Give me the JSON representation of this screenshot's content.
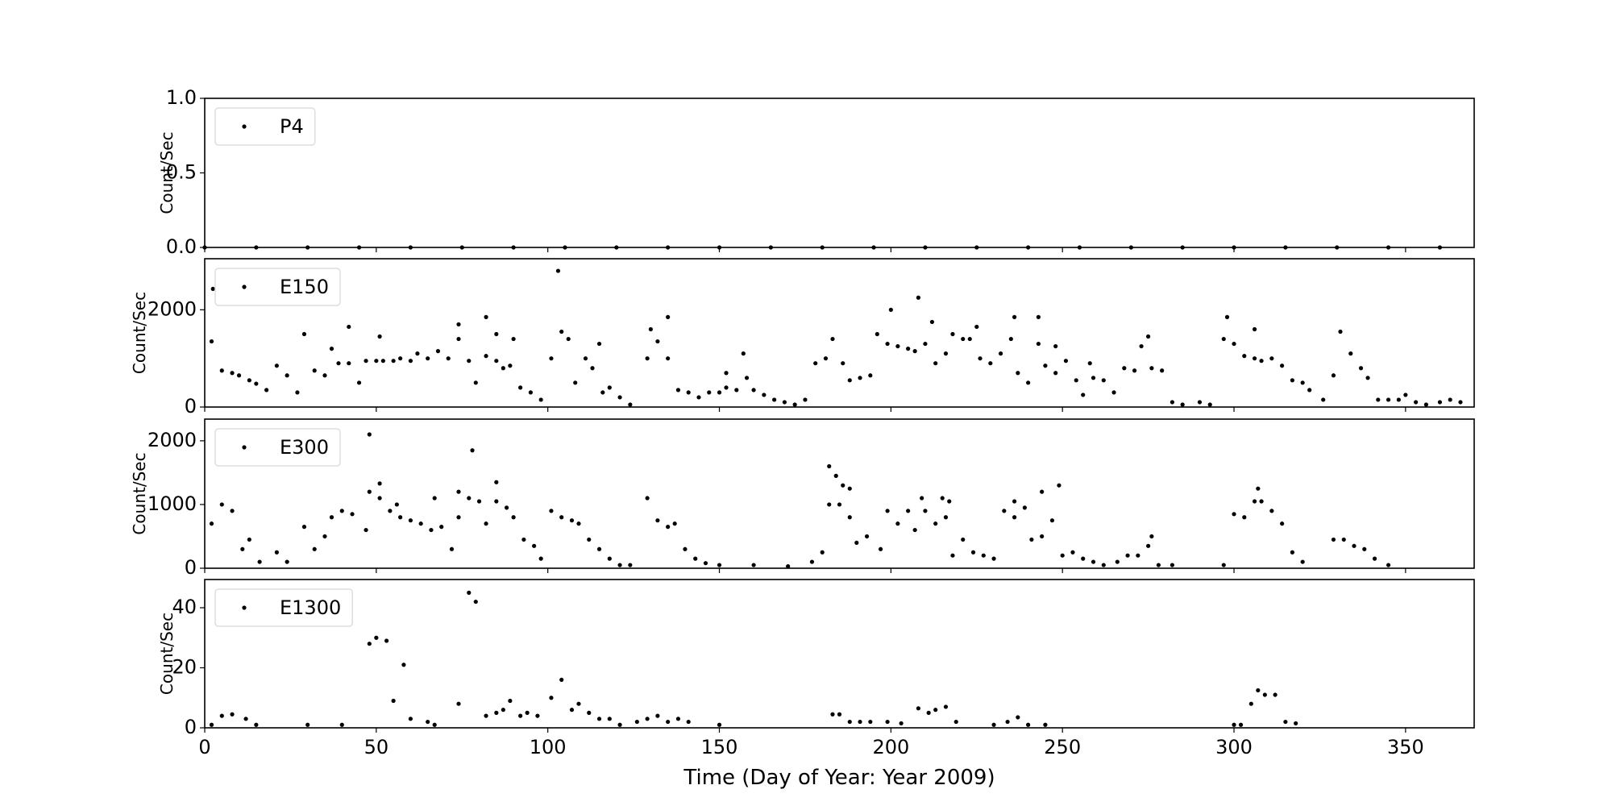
{
  "chart_data": [
    {
      "type": "scatter",
      "ylabel": "Count/Sec",
      "legend": "upper left",
      "xlim": [
        0,
        370
      ],
      "xticks": [
        0,
        50,
        100,
        150,
        200,
        250,
        300,
        350
      ],
      "ylim": [
        0,
        1
      ],
      "yticks": [
        {
          "value": 0,
          "label": "0.0"
        },
        {
          "value": 0.5,
          "label": "0.5"
        },
        {
          "value": 1,
          "label": "1.0"
        }
      ],
      "series": [
        {
          "name": "P4",
          "color": "#000000",
          "x": [
            0,
            15,
            30,
            45,
            60,
            75,
            90,
            105,
            120,
            135,
            150,
            165,
            180,
            195,
            210,
            225,
            240,
            255,
            270,
            285,
            300,
            315,
            330,
            345,
            360
          ],
          "values": [
            0,
            0,
            0,
            0,
            0,
            0,
            0,
            0,
            0,
            0,
            0,
            0,
            0,
            0,
            0,
            0,
            0,
            0,
            0,
            0,
            0,
            0,
            0,
            0,
            0
          ]
        }
      ]
    },
    {
      "type": "scatter",
      "ylabel": "Count/Sec",
      "legend": "upper left",
      "xlim": [
        0,
        370
      ],
      "xticks": [
        0,
        50,
        100,
        150,
        200,
        250,
        300,
        350
      ],
      "ylim": [
        0,
        3050
      ],
      "yticks": [
        0,
        2000
      ],
      "series": [
        {
          "name": "E150",
          "color": "#000000",
          "x": [
            2,
            5,
            8,
            10,
            13,
            15,
            18,
            21,
            24,
            27,
            29,
            32,
            35,
            37,
            39,
            42,
            45,
            47,
            50,
            52,
            55,
            57,
            60,
            62,
            65,
            68,
            71,
            74,
            77,
            79,
            82,
            85,
            87,
            89,
            92,
            95,
            98,
            101,
            104,
            106,
            108,
            111,
            113,
            116,
            118,
            121,
            124,
            129,
            132,
            135,
            138,
            141,
            144,
            147,
            150,
            152,
            155,
            158,
            160,
            163,
            166,
            169,
            172,
            175,
            178,
            181,
            183,
            186,
            188,
            191,
            194,
            196,
            199,
            202,
            205,
            207,
            210,
            213,
            216,
            218,
            221,
            223,
            226,
            229,
            232,
            235,
            237,
            240,
            243,
            245,
            248,
            251,
            254,
            256,
            259,
            262,
            265,
            268,
            271,
            273,
            276,
            279,
            282,
            285,
            290,
            293,
            297,
            300,
            303,
            306,
            308,
            311,
            314,
            317,
            320,
            322,
            326,
            329,
            331,
            334,
            337,
            339,
            342,
            345,
            348,
            350,
            353,
            356,
            360,
            363,
            366,
            2.4,
            42,
            51,
            74,
            82,
            85,
            90,
            103,
            115,
            130,
            135,
            152,
            157,
            200,
            208,
            212,
            225,
            236,
            243,
            248,
            258,
            275,
            298,
            306
          ],
          "values": [
            1350,
            750,
            700,
            650,
            550,
            480,
            350,
            850,
            650,
            300,
            1500,
            750,
            650,
            1200,
            900,
            900,
            500,
            950,
            950,
            950,
            950,
            1000,
            950,
            1100,
            1000,
            1150,
            1000,
            1400,
            950,
            500,
            1050,
            950,
            800,
            850,
            400,
            300,
            150,
            1000,
            1550,
            1400,
            500,
            1000,
            800,
            300,
            400,
            200,
            50,
            1000,
            1350,
            1000,
            350,
            300,
            200,
            300,
            300,
            400,
            350,
            600,
            350,
            250,
            150,
            100,
            50,
            150,
            900,
            1000,
            1400,
            900,
            550,
            600,
            650,
            1500,
            1300,
            1250,
            1200,
            1150,
            1300,
            900,
            1100,
            1500,
            1400,
            1400,
            1000,
            900,
            1100,
            1400,
            700,
            500,
            1300,
            850,
            700,
            950,
            550,
            250,
            600,
            550,
            300,
            800,
            750,
            1250,
            800,
            750,
            100,
            50,
            100,
            50,
            1400,
            1300,
            1050,
            1000,
            950,
            1000,
            850,
            550,
            500,
            350,
            150,
            650,
            1550,
            1100,
            800,
            600,
            150,
            150,
            150,
            250,
            100,
            50,
            100,
            150,
            100,
            2430,
            1650,
            1450,
            1700,
            1850,
            1500,
            1400,
            2800,
            1300,
            1600,
            1850,
            700,
            1100,
            2000,
            2250,
            1750,
            1650,
            1850,
            1850,
            1250,
            900,
            1450,
            1850,
            1600
          ]
        }
      ]
    },
    {
      "type": "scatter",
      "ylabel": "Count/Sec",
      "legend": "upper left",
      "xlim": [
        0,
        370
      ],
      "xticks": [
        0,
        50,
        100,
        150,
        200,
        250,
        300,
        350
      ],
      "ylim": [
        0,
        2340
      ],
      "yticks": [
        0,
        1000,
        2000
      ],
      "series": [
        {
          "name": "E300",
          "color": "#000000",
          "x": [
            2,
            5,
            8,
            11,
            13,
            16,
            21,
            24,
            29,
            32,
            35,
            37,
            40,
            43,
            47,
            48,
            51,
            54,
            57,
            60,
            63,
            66,
            69,
            72,
            74,
            77,
            80,
            82,
            85,
            88,
            90,
            93,
            96,
            98,
            101,
            104,
            107,
            109,
            112,
            115,
            118,
            121,
            124,
            129,
            132,
            135,
            137,
            140,
            143,
            146,
            150,
            160,
            170,
            177,
            180,
            182,
            185,
            188,
            190,
            193,
            197,
            199,
            202,
            205,
            207,
            210,
            213,
            216,
            218,
            221,
            224,
            227,
            230,
            233,
            236,
            239,
            241,
            244,
            247,
            250,
            253,
            256,
            259,
            262,
            266,
            269,
            272,
            275,
            278,
            282,
            297,
            300,
            303,
            306,
            308,
            311,
            314,
            317,
            320,
            329,
            332,
            335,
            338,
            341,
            345,
            48,
            51,
            56,
            67,
            74,
            78,
            85,
            182,
            184,
            186,
            188,
            209,
            215,
            217,
            236,
            244,
            249,
            276,
            307
          ],
          "values": [
            700,
            1000,
            900,
            300,
            450,
            100,
            250,
            100,
            650,
            300,
            500,
            800,
            900,
            850,
            600,
            1200,
            1100,
            900,
            800,
            750,
            700,
            600,
            650,
            300,
            800,
            1100,
            1050,
            700,
            1050,
            950,
            800,
            450,
            350,
            150,
            900,
            800,
            750,
            700,
            450,
            300,
            150,
            50,
            50,
            1100,
            750,
            650,
            700,
            300,
            150,
            80,
            50,
            50,
            30,
            100,
            250,
            1000,
            1000,
            800,
            400,
            500,
            300,
            900,
            700,
            900,
            600,
            900,
            700,
            800,
            200,
            450,
            250,
            200,
            150,
            900,
            800,
            950,
            450,
            500,
            750,
            200,
            250,
            150,
            100,
            50,
            100,
            200,
            200,
            350,
            50,
            50,
            50,
            850,
            800,
            1050,
            1050,
            900,
            700,
            250,
            100,
            450,
            450,
            350,
            300,
            150,
            50,
            2100,
            1330,
            1000,
            1100,
            1200,
            1850,
            1350,
            1600,
            1450,
            1300,
            1250,
            1100,
            1100,
            1050,
            1050,
            1200,
            1300,
            500,
            1250
          ]
        }
      ]
    },
    {
      "type": "scatter",
      "ylabel": "Count/Sec",
      "xlabel": "Time (Day of Year: Year 2009)",
      "legend": "upper left",
      "xlim": [
        0,
        370
      ],
      "xticks": [
        0,
        50,
        100,
        150,
        200,
        250,
        300,
        350
      ],
      "ylim": [
        0,
        49.4
      ],
      "yticks": [
        0,
        20,
        40
      ],
      "series": [
        {
          "name": "E1300",
          "color": "#000000",
          "x": [
            2,
            5,
            8,
            12,
            15,
            30,
            40,
            48,
            50,
            53,
            55,
            58,
            60,
            65,
            67,
            74,
            77,
            79,
            82,
            85,
            87,
            89,
            92,
            94,
            97,
            101,
            104,
            107,
            109,
            112,
            115,
            118,
            121,
            126,
            129,
            132,
            135,
            138,
            141,
            150,
            183,
            185,
            188,
            191,
            194,
            199,
            203,
            208,
            211,
            213,
            216,
            219,
            230,
            234,
            237,
            240,
            245,
            300,
            302,
            305,
            307,
            309,
            312,
            315,
            318
          ],
          "values": [
            1,
            4,
            4.5,
            3,
            1,
            1,
            1,
            28,
            30,
            29,
            9,
            21,
            3,
            2,
            1,
            8,
            45,
            42,
            4,
            5,
            6,
            9,
            4,
            5,
            4,
            10,
            16,
            6,
            8,
            5,
            3,
            3,
            1,
            2,
            3,
            4,
            2,
            3,
            2,
            1,
            4.5,
            4.5,
            2,
            2,
            2,
            2,
            1.5,
            6.5,
            5,
            6,
            7,
            2,
            1,
            2,
            3.5,
            1,
            1,
            1,
            1,
            8,
            12.5,
            11,
            11,
            2,
            1.5
          ]
        }
      ]
    }
  ]
}
